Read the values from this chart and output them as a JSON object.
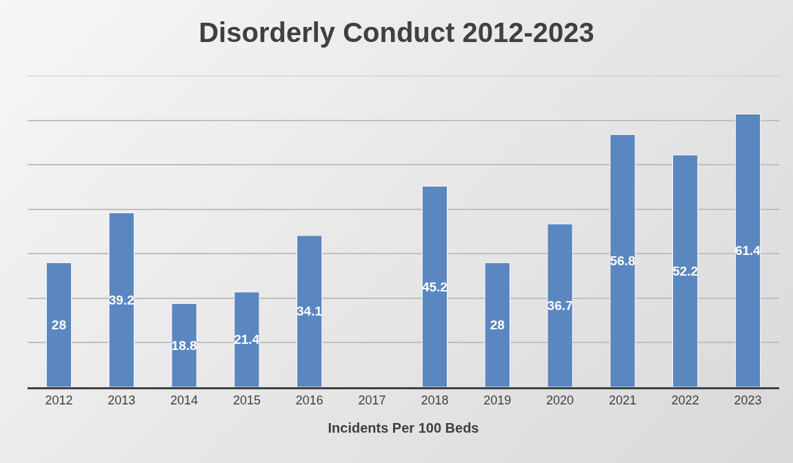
{
  "chart_data": {
    "type": "bar",
    "title": "Disorderly Conduct 2012-2023",
    "xlabel": "Incidents Per 100 Beds",
    "categories": [
      "2012",
      "2013",
      "2014",
      "2015",
      "2016",
      "2017",
      "2018",
      "2019",
      "2020",
      "2021",
      "2022",
      "2023"
    ],
    "values": [
      28,
      39.2,
      18.8,
      21.4,
      34.1,
      null,
      45.2,
      28,
      36.7,
      56.8,
      52.2,
      61.4
    ],
    "color": "#5b87c0",
    "data_labels": true,
    "ylim": [
      0,
      70
    ],
    "yticks": [
      {
        "value": 0,
        "label": null
      },
      {
        "value": 10,
        "label": null
      },
      {
        "value": 20,
        "label": null
      },
      {
        "value": 30,
        "label": null
      },
      {
        "value": 40,
        "label": null
      },
      {
        "value": 50,
        "label": null
      },
      {
        "value": 60,
        "label": null
      },
      {
        "value": 70,
        "label": null
      }
    ],
    "grid": "y",
    "tick_labels": "x",
    "legend": false
  }
}
